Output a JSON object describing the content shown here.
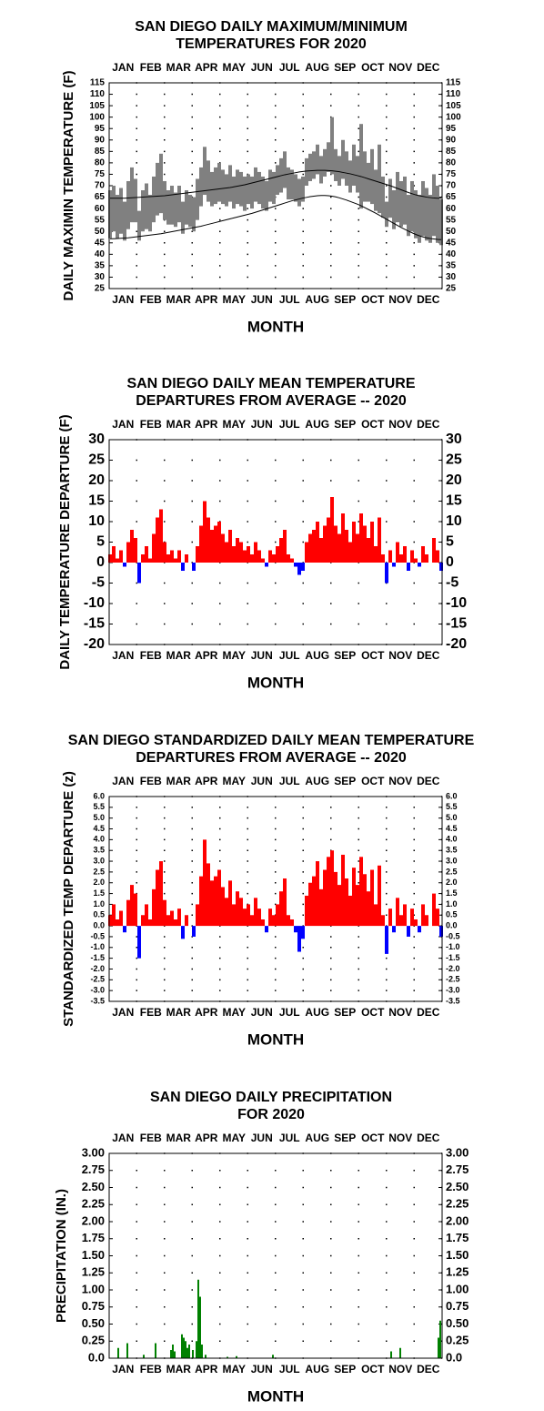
{
  "chart_data": [
    {
      "type": "range-line",
      "title": [
        "SAN DIEGO DAILY MAXIMUM/MINIMUM",
        "TEMPERATURES FOR 2020"
      ],
      "ylabel": "DAILY MAXIMIN TEMPERATURE (F)",
      "xlabel": "MONTH",
      "categories": [
        "JAN",
        "FEB",
        "MAR",
        "APR",
        "MAY",
        "JUN",
        "JUL",
        "AUG",
        "SEP",
        "OCT",
        "NOV",
        "DEC"
      ],
      "xlim": [
        0,
        366
      ],
      "x": [
        1,
        5,
        9,
        13,
        17,
        21,
        25,
        29,
        33,
        37,
        41,
        45,
        49,
        53,
        57,
        61,
        65,
        69,
        73,
        77,
        81,
        85,
        89,
        93,
        97,
        101,
        105,
        109,
        113,
        117,
        121,
        125,
        129,
        133,
        137,
        141,
        145,
        149,
        153,
        157,
        161,
        165,
        169,
        173,
        177,
        181,
        185,
        189,
        193,
        197,
        201,
        205,
        209,
        213,
        217,
        221,
        225,
        229,
        233,
        237,
        241,
        245,
        249,
        253,
        257,
        261,
        265,
        269,
        273,
        277,
        281,
        285,
        289,
        293,
        297,
        301,
        305,
        309,
        313,
        317,
        321,
        325,
        329,
        333,
        337,
        341,
        345,
        349,
        353,
        357,
        361,
        365
      ],
      "series": [
        {
          "color": "#808080",
          "values": [
            68,
            70,
            66,
            69,
            63,
            72,
            78,
            73,
            59,
            68,
            71,
            66,
            74,
            80,
            84,
            72,
            68,
            70,
            67,
            70,
            63,
            68,
            66,
            65,
            73,
            78,
            87,
            81,
            76,
            78,
            80,
            77,
            75,
            79,
            74,
            77,
            76,
            74,
            75,
            74,
            78,
            76,
            74,
            72,
            77,
            76,
            79,
            82,
            85,
            78,
            77,
            75,
            73,
            74,
            82,
            84,
            85,
            88,
            83,
            86,
            89,
            100,
            86,
            83,
            90,
            85,
            81,
            88,
            83,
            97,
            85,
            80,
            86,
            77,
            88,
            74,
            63,
            73,
            68,
            76,
            72,
            74,
            66,
            72,
            68,
            66,
            72,
            69,
            66,
            75,
            70,
            64
          ]
        },
        {
          "color": "#808080",
          "values": [
            47,
            50,
            47,
            49,
            46,
            51,
            54,
            54,
            46,
            50,
            51,
            50,
            54,
            57,
            58,
            55,
            53,
            53,
            52,
            54,
            49,
            53,
            52,
            50,
            55,
            61,
            66,
            63,
            61,
            62,
            63,
            62,
            61,
            63,
            60,
            62,
            61,
            59,
            62,
            60,
            63,
            62,
            60,
            59,
            63,
            62,
            66,
            67,
            69,
            64,
            64,
            63,
            61,
            63,
            70,
            72,
            73,
            75,
            71,
            74,
            76,
            75,
            72,
            70,
            73,
            70,
            67,
            70,
            67,
            60,
            63,
            63,
            62,
            59,
            58,
            56,
            52,
            56,
            51,
            54,
            52,
            53,
            48,
            50,
            47,
            45,
            48,
            46,
            45,
            48,
            45,
            44
          ]
        },
        {
          "color": "#000000",
          "values": [
            64.5,
            64.5,
            64.5,
            64.5,
            64.5,
            64.6,
            64.7,
            64.8,
            64.9,
            65,
            65.1,
            65.2,
            65.3,
            65.4,
            65.5,
            65.6,
            65.8,
            66,
            66.2,
            66.4,
            66.6,
            66.8,
            67,
            67.2,
            67.4,
            67.6,
            67.8,
            68,
            68.2,
            68.4,
            68.6,
            68.8,
            69,
            69.2,
            69.5,
            69.8,
            70.1,
            70.4,
            70.8,
            71.2,
            71.6,
            72,
            72.4,
            72.8,
            73.2,
            73.6,
            74,
            74.4,
            74.8,
            75.1,
            75.4,
            75.7,
            76,
            76.2,
            76.4,
            76.5,
            76.6,
            76.7,
            76.7,
            76.7,
            76.6,
            76.5,
            76.3,
            76.1,
            75.8,
            75.5,
            75.2,
            74.8,
            74.4,
            74,
            73.5,
            73,
            72.5,
            72,
            71.5,
            71,
            70.5,
            70,
            69.4,
            68.8,
            68.2,
            67.6,
            67,
            66.5,
            66,
            65.6,
            65.3,
            65,
            64.8,
            64.6,
            64.5,
            64.5
          ]
        },
        {
          "color": "#000000",
          "values": [
            46.8,
            46.8,
            46.9,
            47,
            47.1,
            47.2,
            47.4,
            47.6,
            47.8,
            48,
            48.2,
            48.4,
            48.6,
            48.8,
            49,
            49.3,
            49.6,
            49.9,
            50.2,
            50.5,
            50.8,
            51.1,
            51.4,
            51.7,
            52,
            52.3,
            52.7,
            53.1,
            53.5,
            53.9,
            54.3,
            54.7,
            55.1,
            55.5,
            55.9,
            56.3,
            56.7,
            57.1,
            57.5,
            57.9,
            58.4,
            58.9,
            59.4,
            59.9,
            60.4,
            60.9,
            61.4,
            61.9,
            62.4,
            62.9,
            63.4,
            63.8,
            64.2,
            64.6,
            64.9,
            65.2,
            65.4,
            65.6,
            65.7,
            65.7,
            65.6,
            65.4,
            65.1,
            64.7,
            64.2,
            63.7,
            63.1,
            62.5,
            61.9,
            61.2,
            60.4,
            59.6,
            58.8,
            58,
            57.1,
            56.2,
            55.3,
            54.4,
            53.5,
            52.6,
            51.7,
            50.9,
            50.1,
            49.4,
            48.7,
            48.1,
            47.6,
            47.2,
            46.9,
            46.7,
            46.5,
            46.4
          ]
        }
      ],
      "ylim": [
        25,
        115
      ],
      "yticks": [
        25,
        30,
        35,
        40,
        45,
        50,
        55,
        60,
        65,
        70,
        75,
        80,
        85,
        90,
        95,
        100,
        105,
        110,
        115
      ]
    },
    {
      "type": "bar",
      "title": [
        "SAN DIEGO DAILY MEAN TEMPERATURE",
        "DEPARTURES FROM AVERAGE -- 2020"
      ],
      "ylabel": "DAILY TEMPERATURE DEPARTURE (F)",
      "xlabel": "MONTH",
      "categories": [
        "JAN",
        "FEB",
        "MAR",
        "APR",
        "MAY",
        "JUN",
        "JUL",
        "AUG",
        "SEP",
        "OCT",
        "NOV",
        "DEC"
      ],
      "xlim": [
        0,
        366
      ],
      "x": [
        1,
        5,
        9,
        13,
        17,
        21,
        25,
        29,
        33,
        37,
        41,
        45,
        49,
        53,
        57,
        61,
        65,
        69,
        73,
        77,
        81,
        85,
        89,
        93,
        97,
        101,
        105,
        109,
        113,
        117,
        121,
        125,
        129,
        133,
        137,
        141,
        145,
        149,
        153,
        157,
        161,
        165,
        169,
        173,
        177,
        181,
        185,
        189,
        193,
        197,
        201,
        205,
        209,
        213,
        217,
        221,
        225,
        229,
        233,
        237,
        241,
        245,
        249,
        253,
        257,
        261,
        265,
        269,
        273,
        277,
        281,
        285,
        289,
        293,
        297,
        301,
        305,
        309,
        313,
        317,
        321,
        325,
        329,
        333,
        337,
        341,
        345,
        349,
        353,
        357,
        361,
        365
      ],
      "values": [
        2,
        4,
        1,
        3,
        -1,
        5,
        8,
        6,
        -5,
        2,
        4,
        1,
        7,
        11,
        13,
        5,
        2,
        3,
        1,
        3,
        -2,
        2,
        0,
        -2,
        4,
        9,
        15,
        11,
        8,
        9,
        10,
        7,
        5,
        8,
        4,
        6,
        5,
        3,
        4,
        2,
        5,
        3,
        1,
        -1,
        3,
        2,
        4,
        6,
        8,
        2,
        1,
        -1,
        -3,
        -2,
        5,
        7,
        8,
        10,
        6,
        9,
        11,
        16,
        9,
        7,
        12,
        8,
        5,
        10,
        7,
        12,
        9,
        6,
        10,
        4,
        11,
        2,
        -5,
        3,
        -1,
        5,
        2,
        4,
        -2,
        3,
        1,
        -1,
        4,
        2,
        0,
        6,
        3,
        -2
      ],
      "color": "#ff0000",
      "negative_color": "#0000ff",
      "ylim": [
        -20,
        30
      ],
      "yticks": [
        -20,
        -15,
        -10,
        -5,
        0,
        5,
        10,
        15,
        20,
        25,
        30
      ]
    },
    {
      "type": "bar",
      "title": [
        "SAN DIEGO STANDARDIZED DAILY MEAN TEMPERATURE",
        "DEPARTURES FROM AVERAGE -- 2020"
      ],
      "ylabel": "STANDARDIZED TEMP DEPARTURE (z)",
      "xlabel": "MONTH",
      "categories": [
        "JAN",
        "FEB",
        "MAR",
        "APR",
        "MAY",
        "JUN",
        "JUL",
        "AUG",
        "SEP",
        "OCT",
        "NOV",
        "DEC"
      ],
      "xlim": [
        0,
        366
      ],
      "x": [
        1,
        5,
        9,
        13,
        17,
        21,
        25,
        29,
        33,
        37,
        41,
        45,
        49,
        53,
        57,
        61,
        65,
        69,
        73,
        77,
        81,
        85,
        89,
        93,
        97,
        101,
        105,
        109,
        113,
        117,
        121,
        125,
        129,
        133,
        137,
        141,
        145,
        149,
        153,
        157,
        161,
        165,
        169,
        173,
        177,
        181,
        185,
        189,
        193,
        197,
        201,
        205,
        209,
        213,
        217,
        221,
        225,
        229,
        233,
        237,
        241,
        245,
        249,
        253,
        257,
        261,
        265,
        269,
        273,
        277,
        281,
        285,
        289,
        293,
        297,
        301,
        305,
        309,
        313,
        317,
        321,
        325,
        329,
        333,
        337,
        341,
        345,
        349,
        353,
        357,
        361,
        365
      ],
      "values": [
        0.5,
        1.0,
        0.3,
        0.7,
        -0.3,
        1.2,
        1.9,
        1.5,
        -1.5,
        0.5,
        1.0,
        0.3,
        1.7,
        2.6,
        3.0,
        1.2,
        0.5,
        0.7,
        0.3,
        0.8,
        -0.6,
        0.5,
        0.0,
        -0.5,
        1.0,
        2.3,
        4.0,
        2.9,
        2.1,
        2.3,
        2.6,
        1.8,
        1.3,
        2.1,
        1.0,
        1.6,
        1.3,
        0.8,
        1.0,
        0.5,
        1.3,
        0.8,
        0.3,
        -0.3,
        0.8,
        0.5,
        1.0,
        1.6,
        2.2,
        0.5,
        0.3,
        -0.3,
        -1.2,
        -0.6,
        1.4,
        2.0,
        2.3,
        3.0,
        1.7,
        2.6,
        3.2,
        3.5,
        2.5,
        1.9,
        3.3,
        2.2,
        1.4,
        2.7,
        1.9,
        3.2,
        2.4,
        1.6,
        2.6,
        1.0,
        2.8,
        0.5,
        -1.3,
        0.8,
        -0.3,
        1.3,
        0.5,
        1.0,
        -0.5,
        0.8,
        0.3,
        -0.3,
        1.0,
        0.5,
        0.0,
        1.5,
        0.8,
        -0.5
      ],
      "color": "#ff0000",
      "negative_color": "#0000ff",
      "ylim": [
        -3.5,
        6
      ],
      "yticks": [
        -3.5,
        {
          "value": -3,
          "label": "-3.0"
        },
        -2.5,
        {
          "value": -2,
          "label": "-2.0"
        },
        -1.5,
        {
          "value": -1,
          "label": "-1.0"
        },
        -0.5,
        {
          "value": 0,
          "label": "0.0"
        },
        0.5,
        {
          "value": 1,
          "label": "1.0"
        },
        1.5,
        {
          "value": 2,
          "label": "2.0"
        },
        2.5,
        {
          "value": 3,
          "label": "3.0"
        },
        3.5,
        {
          "value": 4,
          "label": "4.0"
        },
        4.5,
        {
          "value": 5,
          "label": "5.0"
        },
        5.5,
        {
          "value": 6,
          "label": "6.0"
        }
      ]
    },
    {
      "type": "bar",
      "title": [
        "SAN DIEGO DAILY PRECIPITATION",
        "FOR 2020"
      ],
      "ylabel": "PRECIPITATION (IN.)",
      "xlabel": "MONTH",
      "categories": [
        "JAN",
        "FEB",
        "MAR",
        "APR",
        "MAY",
        "JUN",
        "JUL",
        "AUG",
        "SEP",
        "OCT",
        "NOV",
        "DEC"
      ],
      "xlim": [
        0,
        366
      ],
      "x": [
        10,
        20,
        38,
        51,
        68,
        70,
        72,
        80,
        82,
        84,
        86,
        88,
        92,
        96,
        98,
        100,
        102,
        106,
        130,
        140,
        180,
        310,
        320,
        362,
        364
      ],
      "values": [
        0.15,
        0.22,
        0.05,
        0.22,
        0.12,
        0.2,
        0.1,
        0.35,
        0.3,
        0.25,
        0.15,
        0.2,
        0.12,
        0.25,
        1.15,
        0.9,
        0.2,
        0.05,
        0.02,
        0.03,
        0.05,
        0.1,
        0.15,
        0.3,
        0.55
      ],
      "color": "#008000",
      "ylim": [
        0,
        3
      ],
      "yticks": [
        {
          "value": 0,
          "label": "0.0"
        },
        0.25,
        {
          "value": 0.5,
          "label": "0.50"
        },
        0.75,
        {
          "value": 1,
          "label": "1.00"
        },
        1.25,
        {
          "value": 1.5,
          "label": "1.50"
        },
        1.75,
        {
          "value": 2,
          "label": "2.00"
        },
        2.25,
        {
          "value": 2.5,
          "label": "2.50"
        },
        2.75,
        {
          "value": 3,
          "label": "3.00"
        }
      ]
    }
  ]
}
